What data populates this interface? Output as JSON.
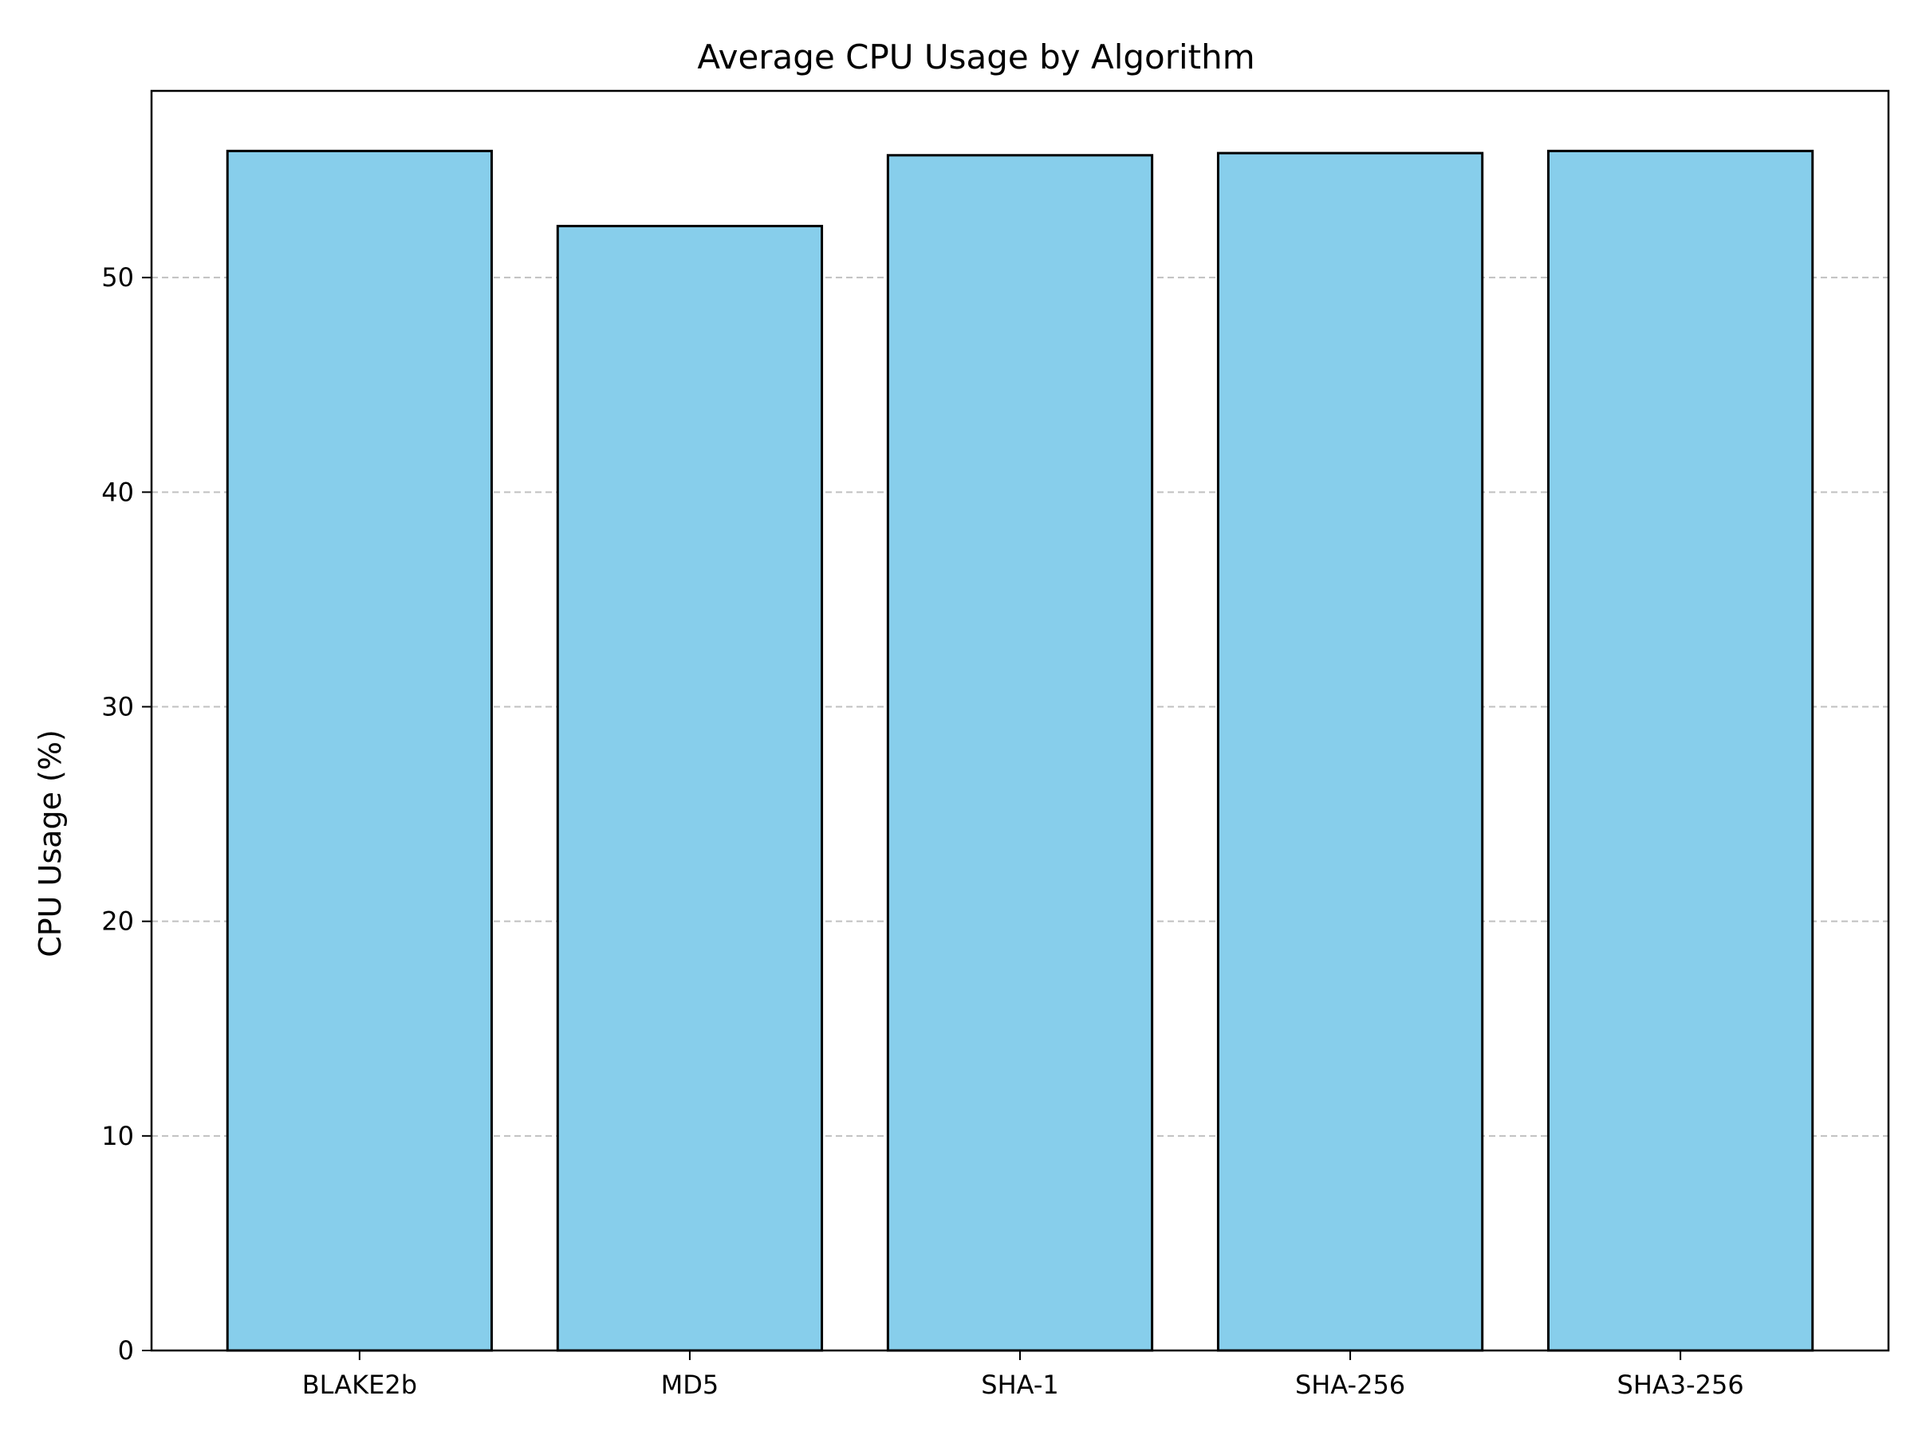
{
  "chart_data": {
    "type": "bar",
    "title": "Average CPU Usage by Algorithm",
    "xlabel": "",
    "ylabel": "CPU Usage (%)",
    "categories": [
      "BLAKE2b",
      "MD5",
      "SHA-1",
      "SHA-256",
      "SHA3-256"
    ],
    "values": [
      55.9,
      52.4,
      55.7,
      55.8,
      55.9
    ],
    "ylim": [
      0,
      58.7
    ],
    "yticks": [
      0,
      10,
      20,
      30,
      40,
      50
    ],
    "grid": {
      "y": true,
      "style": "dashed"
    },
    "bar_color": "#87CEEB",
    "bar_edge_color": "#000000",
    "grid_color": "#c0c0c0"
  }
}
